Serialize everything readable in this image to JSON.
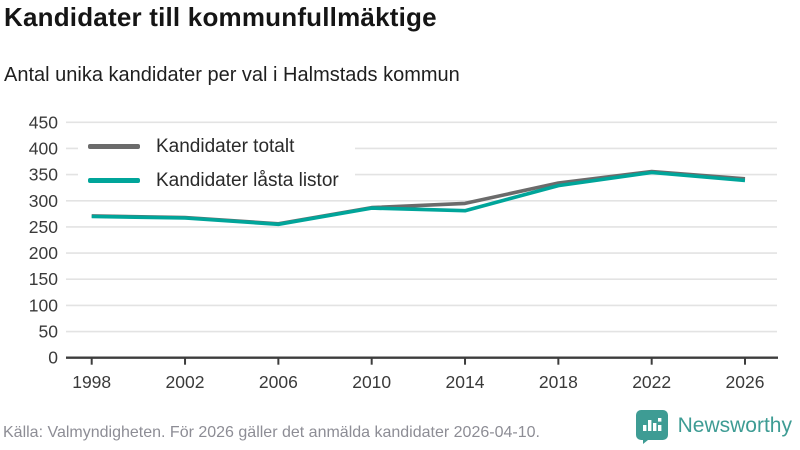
{
  "header": {
    "title": "Kandidater till kommunfullmäktige",
    "subtitle": "Antal unika kandidater per val i Halmstads kommun"
  },
  "chart_data": {
    "type": "line",
    "x": [
      1998,
      2002,
      2006,
      2010,
      2014,
      2018,
      2022,
      2026
    ],
    "series": [
      {
        "name": "Kandidater totalt",
        "color": "#6b6b6b",
        "values": [
          271,
          268,
          256,
          287,
          295,
          334,
          356,
          342
        ]
      },
      {
        "name": "Kandidater låsta listor",
        "color": "#00a59a",
        "values": [
          270,
          267,
          255,
          286,
          281,
          329,
          354,
          339
        ]
      }
    ],
    "title": "Kandidater till kommunfullmäktige",
    "subtitle": "Antal unika kandidater per val i Halmstads kommun",
    "xlabel": "",
    "ylabel": "",
    "ylim": [
      0,
      450
    ],
    "yticks": [
      0,
      50,
      100,
      150,
      200,
      250,
      300,
      350,
      400,
      450
    ],
    "xtick_labels": [
      "1998",
      "2002",
      "2006",
      "2010",
      "2014",
      "2018",
      "2022",
      "2026"
    ],
    "grid": "horizontal",
    "legend_position": "top-left",
    "colors": {
      "gridline": "#e3e3e3",
      "axis": "#3d3d3d",
      "tick_label": "#3a3a3a"
    }
  },
  "footer": {
    "source_note": "Källa: Valmyndigheten. För 2026 gäller det anmälda kandidater 2026-04-10.",
    "brand": {
      "name": "Newsworthy",
      "color": "#3e9c94",
      "icon": "bar-chart-speech-bubble-icon"
    }
  }
}
